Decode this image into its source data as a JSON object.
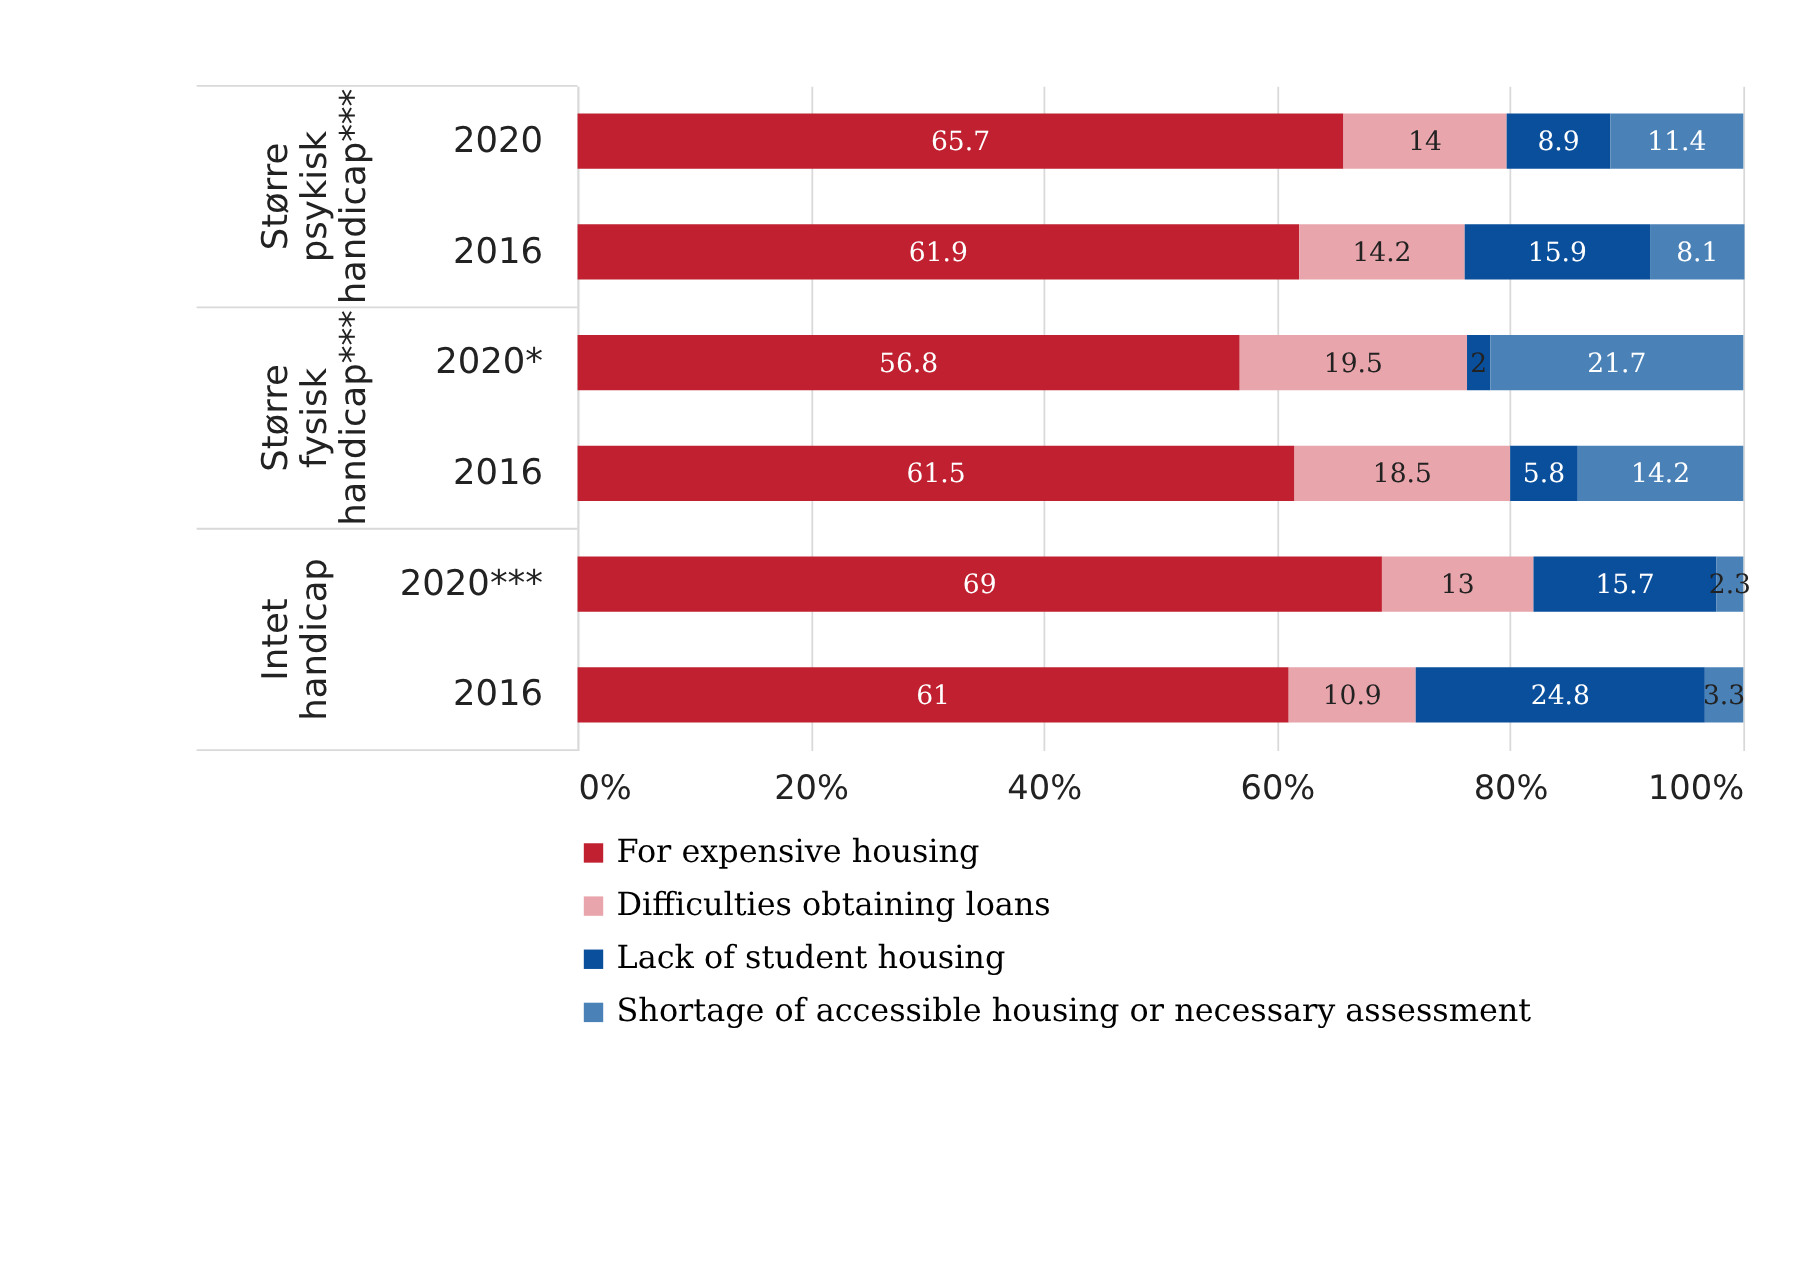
{
  "chart_data": {
    "type": "bar",
    "orientation": "horizontal",
    "stacked": true,
    "categories": [
      "2020",
      "2016",
      "2020*",
      "2016",
      "2020***",
      "2016"
    ],
    "series": [
      {
        "name": "For expensive housing",
        "color": "#c0202f",
        "values": [
          65.7,
          61.9,
          56.8,
          61.5,
          69,
          61
        ]
      },
      {
        "name": "Difficulties obtaining loans",
        "color": "#e8a5ab",
        "values": [
          14,
          14.2,
          19.5,
          18.5,
          13,
          10.9
        ]
      },
      {
        "name": "Lack of student housing",
        "color": "#0a4f9c",
        "values": [
          8.9,
          15.9,
          2,
          5.8,
          15.7,
          24.8
        ]
      },
      {
        "name": "Shortage of accessible housing or necessary assessment",
        "color": "#4a82b8",
        "values": [
          11.4,
          8.1,
          21.7,
          14.2,
          2.3,
          3.3
        ]
      }
    ],
    "annotations": [
      "Større psykisk handicap***",
      "Større fysisk handicap***",
      "Intet handicap"
    ],
    "xlim": [
      0,
      100
    ],
    "xticks": [
      {
        "value": 0,
        "label": "0%"
      },
      {
        "value": 20,
        "label": "20%"
      },
      {
        "value": 40,
        "label": "40%"
      },
      {
        "value": 60,
        "label": "60%"
      },
      {
        "value": 80,
        "label": "80%"
      },
      {
        "value": 100,
        "label": "100%"
      }
    ],
    "grid": "x",
    "legend": "bottom",
    "data_labels": true
  }
}
